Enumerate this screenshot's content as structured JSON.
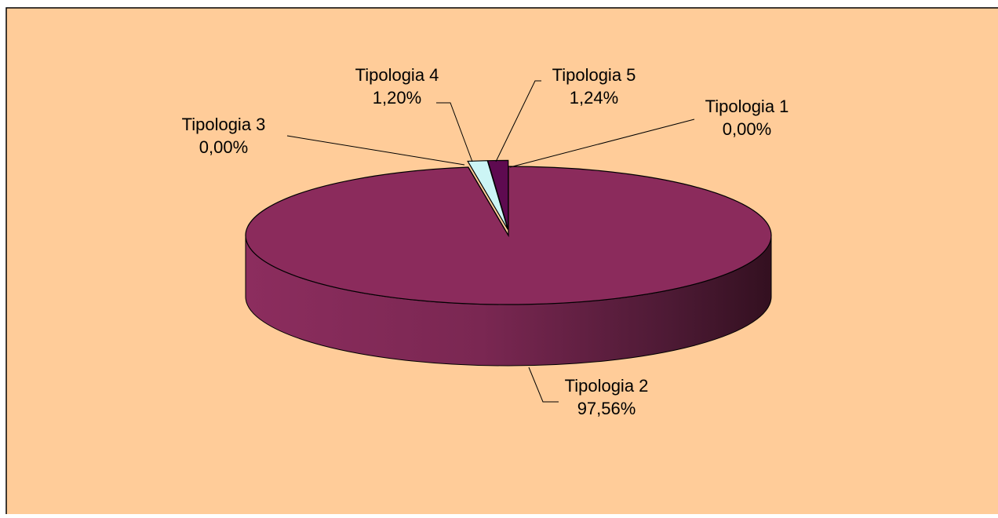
{
  "chart_data": {
    "type": "pie",
    "categories": [
      "Tipologia 1",
      "Tipologia 2",
      "Tipologia 3",
      "Tipologia 4",
      "Tipologia 5"
    ],
    "values": [
      0,
      97.56,
      0,
      1.2,
      1.24
    ],
    "value_labels": [
      "0,00%",
      "97,56%",
      "0,00%",
      "1,20%",
      "1,24%"
    ],
    "colors": [
      "#9999ff",
      "#8b2b5c",
      "#ffffcc",
      "#ccf5f5",
      "#5e0a50"
    ]
  }
}
